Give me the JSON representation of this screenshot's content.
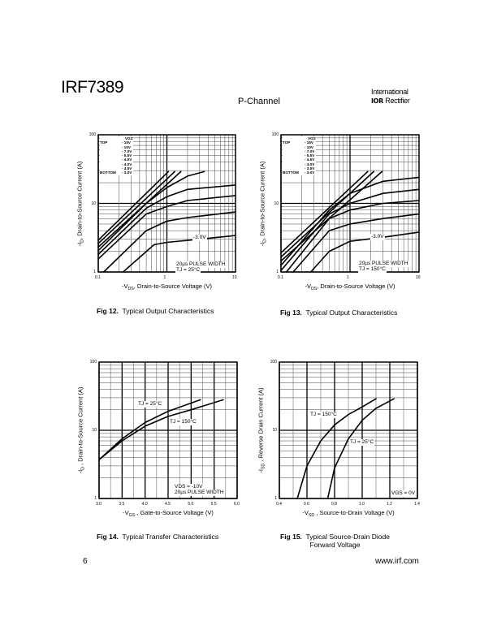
{
  "header": {
    "title": "IRF7389",
    "subtitle": "P-Channel",
    "logo_line1": "International",
    "logo_line2_mark": "IOR",
    "logo_line2": "Rectifier"
  },
  "captions": [
    {
      "fig": "Fig 12.",
      "text": "Typical Output Characteristics"
    },
    {
      "fig": "Fig 13.",
      "text": "Typical Output Characteristics"
    },
    {
      "fig": "Fig 14.",
      "text": "Typical Transfer Characteristics"
    },
    {
      "fig": "Fig 15.",
      "text": "Typical Source-Drain Diode",
      "text2": "Forward Voltage"
    }
  ],
  "footer": {
    "page": "6",
    "url": "www.irf.com"
  },
  "chart_data": [
    {
      "type": "line",
      "xscale": "log",
      "yscale": "log",
      "xlim": [
        0.1,
        10
      ],
      "ylim": [
        1,
        100
      ],
      "grid": true,
      "xticks": [
        "0.1",
        "1",
        "10"
      ],
      "yticks": [
        "1",
        "10",
        "100"
      ],
      "xlabel": {
        "pre": "-V",
        "sub": "DS",
        "post": ", Drain-to-Source Voltage (V)"
      },
      "ylabel": {
        "pre": "-I",
        "sub": "D",
        "post": ", Drain-to-Source Current (A)"
      },
      "legend": {
        "header": "VGS",
        "rows": [
          [
            "TOP",
            "- 15V"
          ],
          [
            "",
            "- 10V"
          ],
          [
            "",
            "- 7.0V"
          ],
          [
            "",
            "- 5.5V"
          ],
          [
            "",
            "- 4.5V"
          ],
          [
            "",
            "- 4.0V"
          ],
          [
            "",
            "- 3.5V"
          ],
          [
            "BOTTOM",
            "- 3.0V"
          ]
        ]
      },
      "annotations": [
        "-3.0V",
        "20µs PULSE WIDTH",
        "TJ = 25°C"
      ],
      "series": [
        {
          "points": [
            [
              0.1,
              2.9
            ],
            [
              1.05,
              29
            ]
          ]
        },
        {
          "points": [
            [
              0.1,
              2.6
            ],
            [
              1.3,
              29
            ]
          ]
        },
        {
          "points": [
            [
              0.1,
              2.3
            ],
            [
              1.6,
              29
            ]
          ]
        },
        {
          "points": [
            [
              0.1,
              2.05
            ],
            [
              0.5,
              10
            ],
            [
              1,
              17
            ],
            [
              2,
              25
            ],
            [
              3.5,
              29
            ]
          ]
        },
        {
          "points": [
            [
              0.1,
              1.8
            ],
            [
              0.5,
              8.5
            ],
            [
              1,
              12.5
            ],
            [
              2,
              16
            ],
            [
              10,
              18.5
            ]
          ]
        },
        {
          "points": [
            [
              0.1,
              1.55
            ],
            [
              0.5,
              7
            ],
            [
              1,
              9
            ],
            [
              2,
              11
            ],
            [
              10,
              13
            ]
          ]
        },
        {
          "points": [
            [
              0.12,
              1
            ],
            [
              0.5,
              4
            ],
            [
              1,
              5.5
            ],
            [
              2,
              6.2
            ],
            [
              10,
              7.5
            ]
          ]
        },
        {
          "points": [
            [
              0.23,
              1
            ],
            [
              0.65,
              2.5
            ],
            [
              1,
              2.7
            ],
            [
              3,
              3
            ],
            [
              10,
              3.4
            ]
          ]
        }
      ]
    },
    {
      "type": "line",
      "xscale": "log",
      "yscale": "log",
      "xlim": [
        0.1,
        10
      ],
      "ylim": [
        1,
        100
      ],
      "grid": true,
      "xticks": [
        "0.1",
        "1",
        "10"
      ],
      "yticks": [
        "1",
        "10",
        "100"
      ],
      "xlabel": {
        "pre": "-V",
        "sub": "DS",
        "post": ", Drain-to-Source Voltage (V)"
      },
      "ylabel": {
        "pre": "-I",
        "sub": "D",
        "post": ", Drain-to-Source Current (A)"
      },
      "legend": {
        "header": "VGS",
        "rows": [
          [
            "TOP",
            "- 15V"
          ],
          [
            "",
            "- 10V"
          ],
          [
            "",
            "- 7.0V"
          ],
          [
            "",
            "- 5.5V"
          ],
          [
            "",
            "- 4.5V"
          ],
          [
            "",
            "- 4.0V"
          ],
          [
            "",
            "- 3.5V"
          ],
          [
            "BOTTOM",
            "- 3.0V"
          ]
        ]
      },
      "annotations": [
        "-3.0V",
        "20µs PULSE WIDTH",
        "TJ = 150°C"
      ],
      "series": [
        {
          "points": [
            [
              0.1,
              1.9
            ],
            [
              1.8,
              29
            ]
          ]
        },
        {
          "points": [
            [
              0.1,
              1.65
            ],
            [
              2.2,
              29
            ]
          ]
        },
        {
          "points": [
            [
              0.1,
              1.45
            ],
            [
              2.9,
              29
            ]
          ]
        },
        {
          "points": [
            [
              0.1,
              1.25
            ],
            [
              0.5,
              8
            ],
            [
              1,
              14
            ],
            [
              3,
              21
            ],
            [
              10,
              24
            ]
          ]
        },
        {
          "points": [
            [
              0.1,
              1.05
            ],
            [
              0.5,
              7
            ],
            [
              1,
              10
            ],
            [
              3,
              14
            ],
            [
              10,
              16
            ]
          ]
        },
        {
          "points": [
            [
              0.12,
              1
            ],
            [
              0.5,
              6
            ],
            [
              1,
              8
            ],
            [
              3,
              10
            ],
            [
              10,
              11
            ]
          ]
        },
        {
          "points": [
            [
              0.15,
              1
            ],
            [
              0.5,
              4
            ],
            [
              1,
              5
            ],
            [
              3,
              6
            ],
            [
              10,
              7
            ]
          ]
        },
        {
          "points": [
            [
              0.27,
              1
            ],
            [
              0.5,
              2
            ],
            [
              1,
              2.8
            ],
            [
              3,
              3.2
            ],
            [
              10,
              3.8
            ]
          ]
        }
      ]
    },
    {
      "type": "line",
      "xscale": "linear",
      "yscale": "log",
      "xlim": [
        3.0,
        6.0
      ],
      "ylim": [
        1,
        100
      ],
      "grid": true,
      "xticks": [
        "3.0",
        "3.5",
        "4.0",
        "4.5",
        "5.0",
        "5.5",
        "6.0"
      ],
      "yticks": [
        "1",
        "10",
        "100"
      ],
      "xlabel": {
        "pre": "-V",
        "sub": "GS",
        "post": " , Gate-to-Source Voltage (V)"
      },
      "ylabel": {
        "pre": "-I",
        "sub": "D",
        "post": " , Drain-to-Source Current (A)"
      },
      "annotations": [
        "TJ = 25°C",
        "TJ = 150°C",
        "VDS = -10V",
        "20µs PULSE WIDTH"
      ],
      "series": [
        {
          "name": "TJ = 25°C",
          "points": [
            [
              3.0,
              3.7
            ],
            [
              3.5,
              7.5
            ],
            [
              4.0,
              13
            ],
            [
              4.5,
              19
            ],
            [
              5.2,
              28
            ]
          ]
        },
        {
          "name": "TJ = 150°C",
          "points": [
            [
              3.0,
              3.7
            ],
            [
              3.5,
              7
            ],
            [
              4.0,
              11.5
            ],
            [
              4.5,
              16
            ],
            [
              5.0,
              20
            ],
            [
              5.7,
              28
            ]
          ]
        }
      ]
    },
    {
      "type": "line",
      "xscale": "linear",
      "yscale": "log",
      "xlim": [
        0.4,
        1.4
      ],
      "ylim": [
        1,
        100
      ],
      "grid": true,
      "xticks": [
        "0.4",
        "0.6",
        "0.8",
        "1.0",
        "1.2",
        "1.4"
      ],
      "yticks": [
        "1",
        "10",
        "100"
      ],
      "xlabel": {
        "pre": "-V",
        "sub": "SD",
        "post": " , Source-to-Drain Voltage (V)"
      },
      "ylabel": {
        "pre": "-I",
        "sub": "SD",
        "post": " , Reverse Drain Current (A)"
      },
      "annotations": [
        "TJ = 150°C",
        "TJ = 25°C",
        "VGS = 0V"
      ],
      "series": [
        {
          "name": "TJ = 150°C",
          "points": [
            [
              0.53,
              1
            ],
            [
              0.6,
              3
            ],
            [
              0.7,
              7
            ],
            [
              0.8,
              12
            ],
            [
              0.9,
              17
            ],
            [
              1.0,
              22
            ],
            [
              1.1,
              29
            ]
          ]
        },
        {
          "name": "TJ = 25°C",
          "points": [
            [
              0.75,
              1
            ],
            [
              0.8,
              2.8
            ],
            [
              0.9,
              7.5
            ],
            [
              1.0,
              14
            ],
            [
              1.1,
              21
            ],
            [
              1.23,
              29
            ]
          ]
        }
      ]
    }
  ]
}
